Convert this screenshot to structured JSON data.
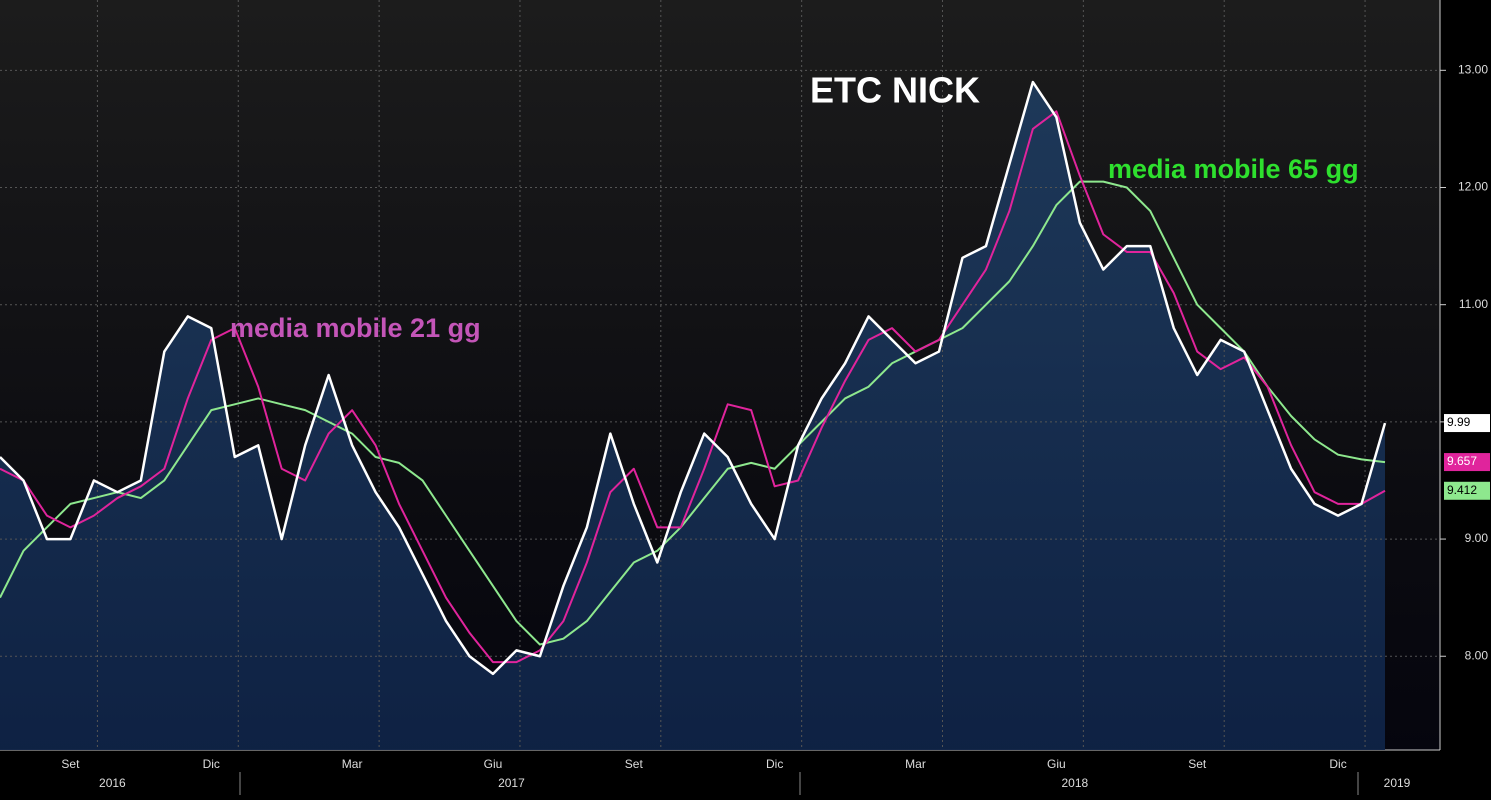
{
  "chart_data": {
    "type": "line",
    "categories": [
      null,
      null,
      null,
      "Set",
      null,
      null,
      null,
      null,
      null,
      "Dic",
      null,
      null,
      null,
      null,
      null,
      "Mar",
      null,
      null,
      null,
      null,
      null,
      "Giu",
      null,
      null,
      null,
      null,
      null,
      "Set",
      null,
      null,
      null,
      null,
      null,
      "Dic",
      null,
      null,
      null,
      null,
      null,
      "Mar",
      null,
      null,
      null,
      null,
      null,
      "Giu",
      null,
      null,
      null,
      null,
      null,
      "Set",
      null,
      null,
      null,
      null,
      null,
      "Dic",
      null,
      null
    ],
    "years": [
      null,
      null,
      null,
      null,
      null,
      "2016",
      null,
      null,
      null,
      null,
      null,
      null,
      null,
      null,
      null,
      null,
      null,
      null,
      null,
      null,
      null,
      null,
      "2017",
      null,
      null,
      null,
      null,
      null,
      null,
      null,
      null,
      null,
      null,
      null,
      null,
      null,
      null,
      null,
      null,
      null,
      null,
      null,
      null,
      null,
      null,
      null,
      "2018",
      null,
      null,
      null,
      null,
      null,
      null,
      null,
      null,
      null,
      null,
      null,
      null,
      "2019"
    ],
    "series": [
      {
        "name": "ETC NICK",
        "color": "#ffffff",
        "values": [
          9.7,
          9.5,
          9.0,
          9.0,
          9.5,
          9.4,
          9.5,
          10.6,
          10.9,
          10.8,
          9.7,
          9.8,
          9.0,
          9.8,
          10.4,
          9.8,
          9.4,
          9.1,
          8.7,
          8.3,
          8.0,
          7.85,
          8.05,
          8.0,
          8.6,
          9.1,
          9.9,
          9.3,
          8.8,
          9.4,
          9.9,
          9.7,
          9.3,
          9.0,
          9.8,
          10.2,
          10.5,
          10.9,
          10.7,
          10.5,
          10.6,
          11.4,
          11.5,
          12.2,
          12.9,
          12.6,
          11.7,
          11.3,
          11.5,
          11.5,
          10.8,
          10.4,
          10.7,
          10.6,
          10.1,
          9.6,
          9.3,
          9.2,
          9.3,
          9.99
        ]
      },
      {
        "name": "media mobile 21 gg",
        "color": "#e0249c",
        "values": [
          9.6,
          9.5,
          9.2,
          9.1,
          9.2,
          9.35,
          9.45,
          9.6,
          10.2,
          10.7,
          10.8,
          10.3,
          9.6,
          9.5,
          9.9,
          10.1,
          9.8,
          9.3,
          8.9,
          8.5,
          8.2,
          7.95,
          7.95,
          8.05,
          8.3,
          8.8,
          9.4,
          9.6,
          9.1,
          9.1,
          9.6,
          10.15,
          10.1,
          9.45,
          9.5,
          9.95,
          10.35,
          10.7,
          10.8,
          10.6,
          10.7,
          11.0,
          11.3,
          11.8,
          12.5,
          12.65,
          12.1,
          11.6,
          11.45,
          11.45,
          11.1,
          10.6,
          10.45,
          10.55,
          10.3,
          9.8,
          9.4,
          9.3,
          9.3,
          9.412
        ]
      },
      {
        "name": "media mobile 65 gg",
        "color": "#8ee88e",
        "values": [
          8.5,
          8.9,
          9.1,
          9.3,
          9.35,
          9.4,
          9.35,
          9.5,
          9.8,
          10.1,
          10.15,
          10.2,
          10.15,
          10.1,
          10.0,
          9.9,
          9.7,
          9.65,
          9.5,
          9.2,
          8.9,
          8.6,
          8.3,
          8.1,
          8.15,
          8.3,
          8.55,
          8.8,
          8.9,
          9.1,
          9.35,
          9.6,
          9.65,
          9.6,
          9.8,
          10.0,
          10.2,
          10.3,
          10.5,
          10.6,
          10.7,
          10.8,
          11.0,
          11.2,
          11.5,
          11.85,
          12.05,
          12.05,
          12.0,
          11.8,
          11.4,
          11.0,
          10.8,
          10.6,
          10.3,
          10.05,
          9.85,
          9.72,
          9.68,
          9.657
        ]
      }
    ],
    "ylim": [
      7.2,
      13.6
    ],
    "yticks": [
      {
        "value": 8,
        "label": "8.00"
      },
      {
        "value": 9,
        "label": "9.00"
      },
      {
        "value": 10,
        "label": "10.00"
      },
      {
        "value": 11,
        "label": "11.00"
      },
      {
        "value": 12,
        "label": "12.00"
      },
      {
        "value": 13,
        "label": "13.00"
      }
    ],
    "grid": true
  }
}
